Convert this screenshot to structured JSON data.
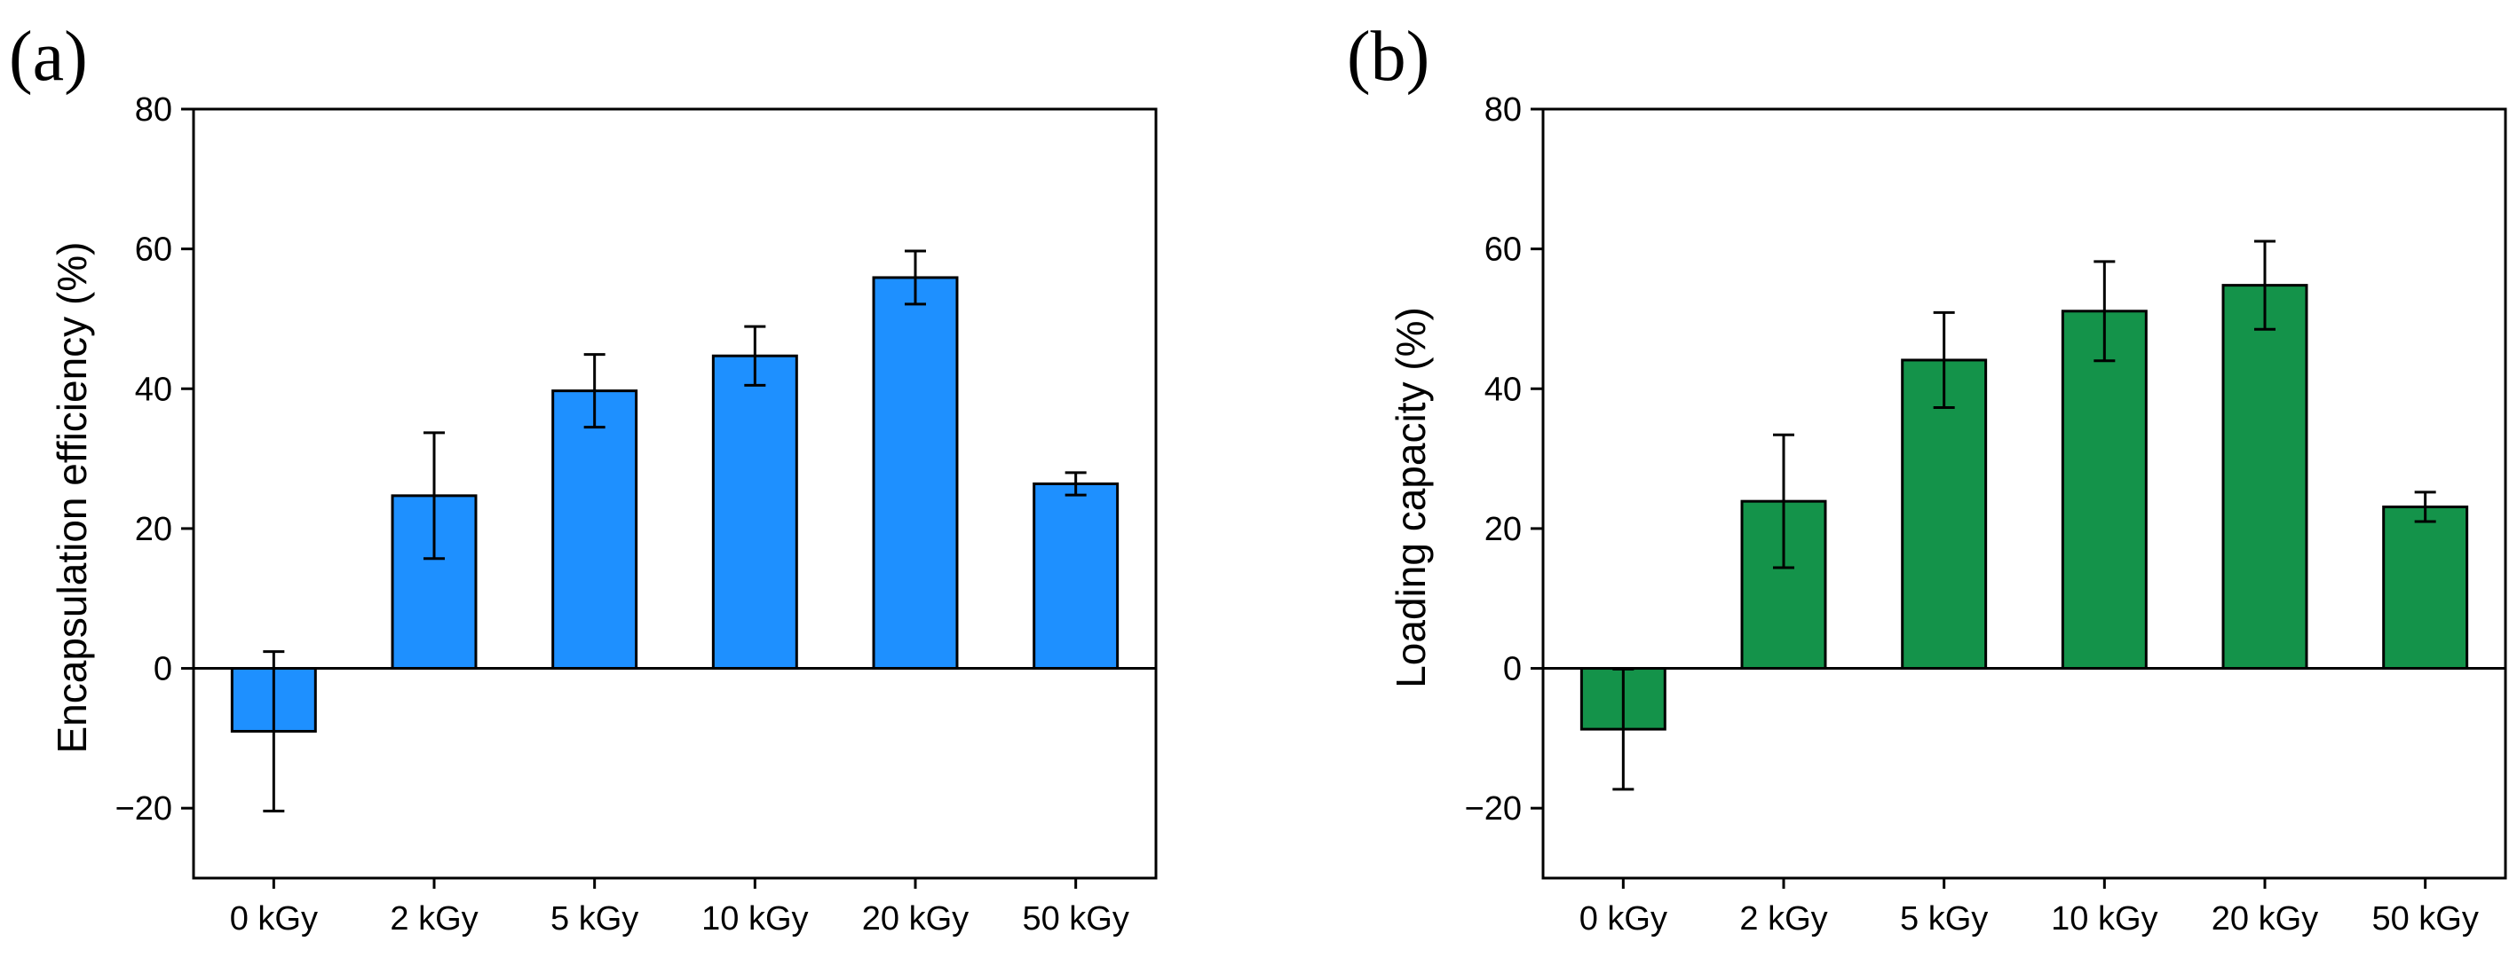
{
  "chart_data": [
    {
      "panel_label": "(a)",
      "type": "bar",
      "categories": [
        "0 kGy",
        "2 kGy",
        "5 kGy",
        "10 kGy",
        "20 kGy",
        "50 kGy"
      ],
      "values": [
        -9,
        24.7,
        39.7,
        44.7,
        55.9,
        26.4
      ],
      "errors": [
        11.4,
        9,
        5.2,
        4.2,
        3.8,
        1.6
      ],
      "xlabel": "",
      "ylabel": "Encapsulation efficiency (%)",
      "ylim": [
        -30,
        80
      ],
      "yticks": [
        -20,
        0,
        20,
        40,
        60,
        80
      ],
      "ytick_labels": [
        "−20",
        "0",
        "20",
        "40",
        "60",
        "80"
      ],
      "bar_color": "#1E90FF",
      "grid": false
    },
    {
      "panel_label": "(b)",
      "type": "bar",
      "categories": [
        "0 kGy",
        "2 kGy",
        "5 kGy",
        "10 kGy",
        "20 kGy",
        "50 kGy"
      ],
      "values": [
        -8.7,
        23.9,
        44.1,
        51.1,
        54.8,
        23.1
      ],
      "errors": [
        8.6,
        9.5,
        6.8,
        7.1,
        6.3,
        2.1
      ],
      "xlabel": "",
      "ylabel": "Loading capacity (%)",
      "ylim": [
        -30,
        80
      ],
      "yticks": [
        -20,
        0,
        20,
        40,
        60,
        80
      ],
      "ytick_labels": [
        "−20",
        "0",
        "20",
        "40",
        "60",
        "80"
      ],
      "bar_color": "#14934A",
      "grid": false
    }
  ]
}
